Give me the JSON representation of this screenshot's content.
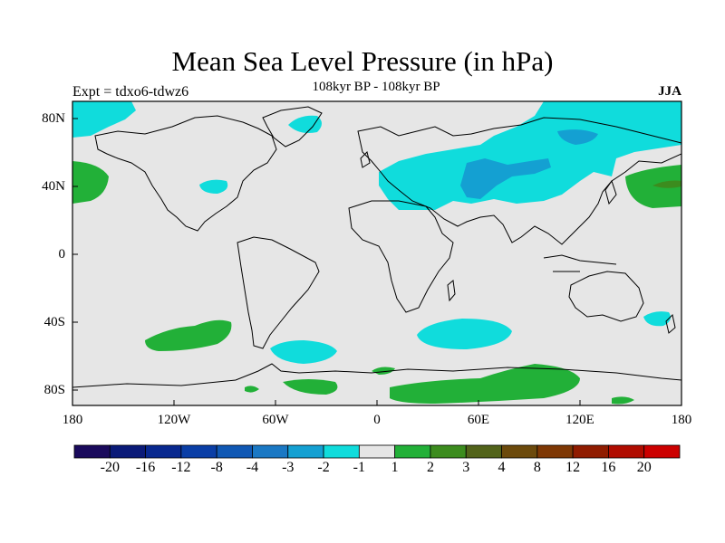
{
  "title": "Mean Sea Level Pressure (in hPa)",
  "subtitle": "108kyr BP - 108kyr BP",
  "left_label": "Expt = tdxo6-tdwz6",
  "right_label": "JJA",
  "lat_labels": [
    "80N",
    "40N",
    "0",
    "40S",
    "80S"
  ],
  "lon_labels": [
    "180",
    "120W",
    "60W",
    "0",
    "60E",
    "120E",
    "180"
  ],
  "colorbar": {
    "colors": [
      "#1a0a5c",
      "#0a1a78",
      "#08288f",
      "#0a3ea6",
      "#1058b4",
      "#1a78c4",
      "#14a0d2",
      "#10dcdc",
      "#e6e6e6",
      "#22b038",
      "#3c8c1e",
      "#52631a",
      "#6c4a0c",
      "#7e3804",
      "#901c00",
      "#b00c00",
      "#cc0000"
    ],
    "labels": [
      "-20",
      "-16",
      "-12",
      "-8",
      "-4",
      "-3",
      "-2",
      "-1",
      "1",
      "2",
      "3",
      "4",
      "8",
      "12",
      "16",
      "20"
    ]
  }
}
